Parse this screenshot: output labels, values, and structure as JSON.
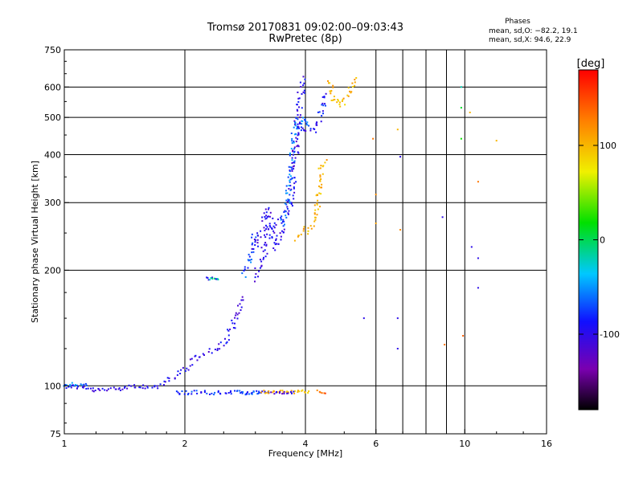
{
  "header": {
    "title": "Tromsø 20170831 09:02:00–09:03:43",
    "subtitle": "RwPretec (8p)",
    "stats_heading": "Phases",
    "stats_o": "mean, sd,O:  −82.2, 19.1",
    "stats_x": "mean, sd,X:  94.6, 22.9"
  },
  "colors": {
    "background": "#ffffff",
    "axis": "#000000",
    "grid": "#000000"
  },
  "chart_data": {
    "type": "scatter",
    "title": "Tromsø 20170831 09:02:00–09:03:43",
    "subtitle": "RwPretec (8p)",
    "xlabel": "Frequency [MHz]",
    "ylabel": "Stationary phase Virtual Height [km]",
    "xscale": "log",
    "yscale": "log",
    "xlim": [
      1,
      16
    ],
    "ylim": [
      75,
      750
    ],
    "xticks": [
      1,
      2,
      4,
      6,
      10,
      16
    ],
    "xtick_labels": [
      "1",
      "2",
      "4",
      "6",
      "10",
      "16"
    ],
    "xgrid": [
      2,
      4,
      6,
      7,
      8,
      9,
      10
    ],
    "yticks": [
      75,
      100,
      200,
      300,
      400,
      500,
      600,
      750
    ],
    "ytick_labels": [
      "75",
      "100",
      "200",
      "300",
      "400",
      "500",
      "600",
      "750"
    ],
    "ygrid": [
      100,
      200,
      300,
      400,
      500,
      600
    ],
    "grid": true,
    "colorbar": {
      "label": "[deg]",
      "range": [
        -180,
        180
      ],
      "ticks": [
        100,
        0,
        -100
      ],
      "tick_labels": [
        "100",
        "0",
        "-100"
      ]
    },
    "series": [
      {
        "traces": [
          {
            "x": [
              1.0,
              1.1,
              1.2,
              1.3,
              1.4,
              1.5,
              1.6,
              1.7
            ],
            "y": [
              100,
              99,
              97,
              98,
              99,
              100,
              99,
              99
            ],
            "phase": -100,
            "jitter": 0.6
          },
          {
            "x": [
              1.0,
              1.05,
              1.15
            ],
            "y": [
              99,
              101,
              100
            ],
            "phase": -60,
            "jitter": 0.4
          },
          {
            "x": [
              1.7,
              1.8,
              1.9,
              2.0,
              2.1,
              2.2,
              2.3,
              2.4,
              2.5,
              2.6,
              2.7
            ],
            "y": [
              99,
              103,
              107,
              110,
              117,
              120,
              123,
              125,
              128,
              140,
              150
            ],
            "phase": -100,
            "jitter": 0.7
          },
          {
            "x": [
              2.7,
              2.75,
              2.8
            ],
            "y": [
              150,
              160,
              170
            ],
            "phase": -100,
            "jitter": 0.6
          },
          {
            "x": [
              2.25,
              2.35,
              2.45
            ],
            "y": [
              190,
              190,
              190
            ],
            "phase": -100,
            "jitter": 0.4
          },
          {
            "x": [
              2.3,
              2.45
            ],
            "y": [
              190,
              190
            ],
            "phase": -20,
            "jitter": 0.3
          },
          {
            "x": [
              2.8,
              2.9,
              2.95,
              3.0
            ],
            "y": [
              195,
              210,
              230,
              250
            ],
            "phase": -70,
            "jitter": 0.7
          },
          {
            "x": [
              3.0,
              3.1,
              3.2,
              3.3,
              3.4,
              3.5,
              3.6,
              3.7,
              3.75,
              3.8,
              3.85,
              3.9,
              4.0
            ],
            "y": [
              190,
              210,
              240,
              260,
              270,
              270,
              280,
              320,
              380,
              430,
              500,
              580,
              640
            ],
            "phase": -100,
            "jitter": 0.9
          },
          {
            "x": [
              3.0,
              3.1,
              3.15,
              3.2,
              3.3,
              3.4,
              3.5
            ],
            "y": [
              230,
              250,
              270,
              290,
              250,
              230,
              260
            ],
            "phase": -100,
            "jitter": 0.9
          },
          {
            "x": [
              3.5,
              3.6,
              3.7,
              3.75,
              3.8
            ],
            "y": [
              260,
              300,
              380,
              450,
              500
            ],
            "phase": -60,
            "jitter": 0.7
          },
          {
            "x": [
              3.8,
              3.9,
              4.0,
              4.1,
              4.2,
              4.3,
              4.4,
              4.5
            ],
            "y": [
              490,
              460,
              470,
              460,
              460,
              480,
              530,
              580
            ],
            "phase": -90,
            "jitter": 0.7
          },
          {
            "x": [
              3.9,
              4.0,
              4.05,
              4.1
            ],
            "y": [
              480,
              500,
              490,
              470
            ],
            "phase": -60,
            "jitter": 0.5
          },
          {
            "x": [
              4.0,
              4.1,
              4.2,
              4.3,
              4.35,
              4.4,
              4.5
            ],
            "y": [
              250,
              255,
              270,
              300,
              340,
              370,
              390
            ],
            "phase": 100,
            "jitter": 0.7
          },
          {
            "x": [
              3.8,
              3.9,
              4.0
            ],
            "y": [
              240,
              250,
              260
            ],
            "phase": 110,
            "jitter": 0.4
          },
          {
            "x": [
              4.6,
              4.7,
              4.8,
              4.9,
              5.0,
              5.1,
              5.2,
              5.3,
              5.4
            ],
            "y": [
              620,
              560,
              550,
              540,
              550,
              570,
              600,
              620,
              640
            ],
            "phase": 100,
            "jitter": 0.6
          },
          {
            "x": [
              4.7,
              4.8
            ],
            "y": [
              560,
              545
            ],
            "phase": 120,
            "jitter": 0.3
          },
          {
            "x": [
              1.9,
              2.0,
              2.1,
              2.2,
              2.3,
              2.4,
              2.5,
              2.6,
              2.7,
              2.8,
              2.9,
              3.0,
              3.1,
              3.2,
              3.3
            ],
            "y": [
              96,
              96,
              96,
              96,
              96,
              96,
              96,
              96,
              96,
              96,
              96,
              96,
              96,
              96,
              96
            ],
            "phase": -80,
            "jitter": 0.5
          },
          {
            "x": [
              2.8,
              2.9,
              3.0,
              3.1
            ],
            "y": [
              96,
              96,
              96,
              96
            ],
            "phase": -70,
            "jitter": 0.4
          },
          {
            "x": [
              3.1,
              3.2,
              3.6,
              3.7,
              3.8,
              3.9,
              4.0,
              4.1
            ],
            "y": [
              97,
              96,
              97,
              96,
              96,
              97,
              96,
              97
            ],
            "phase": 100,
            "jitter": 0.4
          },
          {
            "x": [
              3.3,
              3.6,
              3.8
            ],
            "y": [
              96,
              96,
              96
            ],
            "phase": -110,
            "jitter": 0.3
          },
          {
            "x": [
              4.3,
              4.4,
              4.5
            ],
            "y": [
              97,
              96,
              96
            ],
            "phase": 140,
            "jitter": 0.3
          }
        ],
        "scattered": [
          {
            "x": 5.9,
            "y": 440,
            "phase": 130
          },
          {
            "x": 6.0,
            "y": 315,
            "phase": 120
          },
          {
            "x": 6.0,
            "y": 265,
            "phase": 110
          },
          {
            "x": 5.6,
            "y": 150,
            "phase": -100
          },
          {
            "x": 6.8,
            "y": 465,
            "phase": 100
          },
          {
            "x": 6.9,
            "y": 395,
            "phase": -100
          },
          {
            "x": 6.9,
            "y": 255,
            "phase": 120
          },
          {
            "x": 6.8,
            "y": 150,
            "phase": -100
          },
          {
            "x": 6.8,
            "y": 125,
            "phase": -100
          },
          {
            "x": 8.8,
            "y": 275,
            "phase": -100
          },
          {
            "x": 8.9,
            "y": 128,
            "phase": 130
          },
          {
            "x": 9.8,
            "y": 600,
            "phase": -20
          },
          {
            "x": 9.8,
            "y": 530,
            "phase": 10
          },
          {
            "x": 9.8,
            "y": 440,
            "phase": 20
          },
          {
            "x": 9.9,
            "y": 135,
            "phase": 140
          },
          {
            "x": 10.3,
            "y": 515,
            "phase": 100
          },
          {
            "x": 10.4,
            "y": 230,
            "phase": -100
          },
          {
            "x": 10.8,
            "y": 340,
            "phase": 130
          },
          {
            "x": 10.8,
            "y": 215,
            "phase": -100
          },
          {
            "x": 10.8,
            "y": 180,
            "phase": -100
          },
          {
            "x": 12.0,
            "y": 435,
            "phase": 100
          }
        ]
      }
    ]
  }
}
